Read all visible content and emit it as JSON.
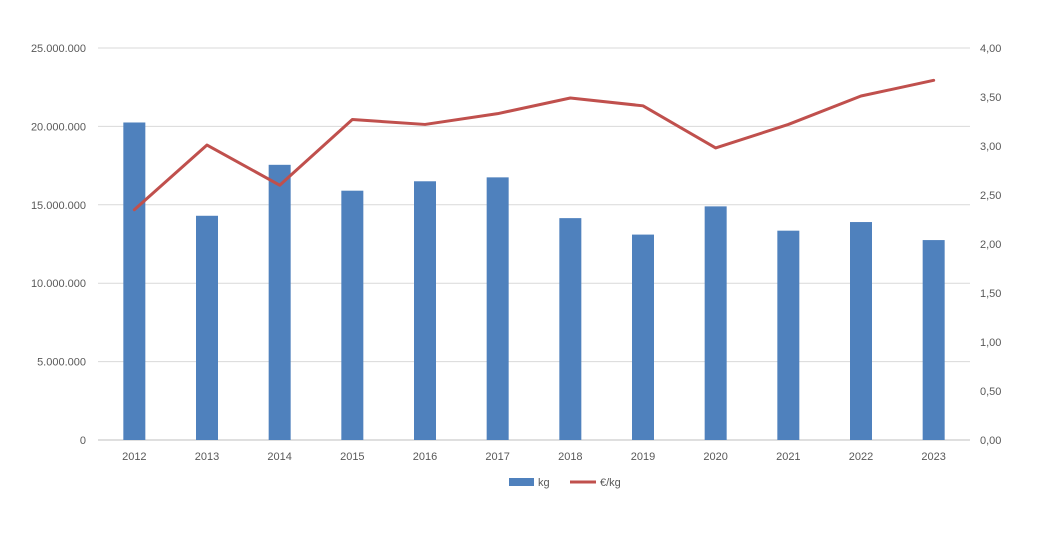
{
  "chart_data": {
    "type": "bar",
    "categories": [
      "2012",
      "2013",
      "2014",
      "2015",
      "2016",
      "2017",
      "2018",
      "2019",
      "2020",
      "2021",
      "2022",
      "2023"
    ],
    "series": [
      {
        "name": "kg",
        "type": "bar",
        "axis": "left",
        "values": [
          20250000,
          14300000,
          17550000,
          15900000,
          16500000,
          16750000,
          14150000,
          13100000,
          14900000,
          13350000,
          13900000,
          12750000
        ]
      },
      {
        "name": "€/kg",
        "type": "line",
        "axis": "right",
        "values": [
          2.35,
          3.01,
          2.6,
          3.27,
          3.22,
          3.33,
          3.49,
          3.41,
          2.98,
          3.22,
          3.51,
          3.67
        ]
      }
    ],
    "y_left": {
      "ylim": [
        0,
        25000000
      ],
      "ticks": [
        "0",
        "5.000.000",
        "10.000.000",
        "15.000.000",
        "20.000.000",
        "25.000.000"
      ]
    },
    "y_right": {
      "ylim": [
        0,
        4
      ],
      "ticks": [
        "0,00",
        "0,50",
        "1,00",
        "1,50",
        "2,00",
        "2,50",
        "3,00",
        "3,50",
        "4,00"
      ]
    },
    "grid": true,
    "legend_position": "bottom",
    "colors": {
      "bar": "#4f81bd",
      "line": "#c0504d",
      "grid": "#d9d9d9",
      "axis": "#bfbfbf"
    }
  }
}
